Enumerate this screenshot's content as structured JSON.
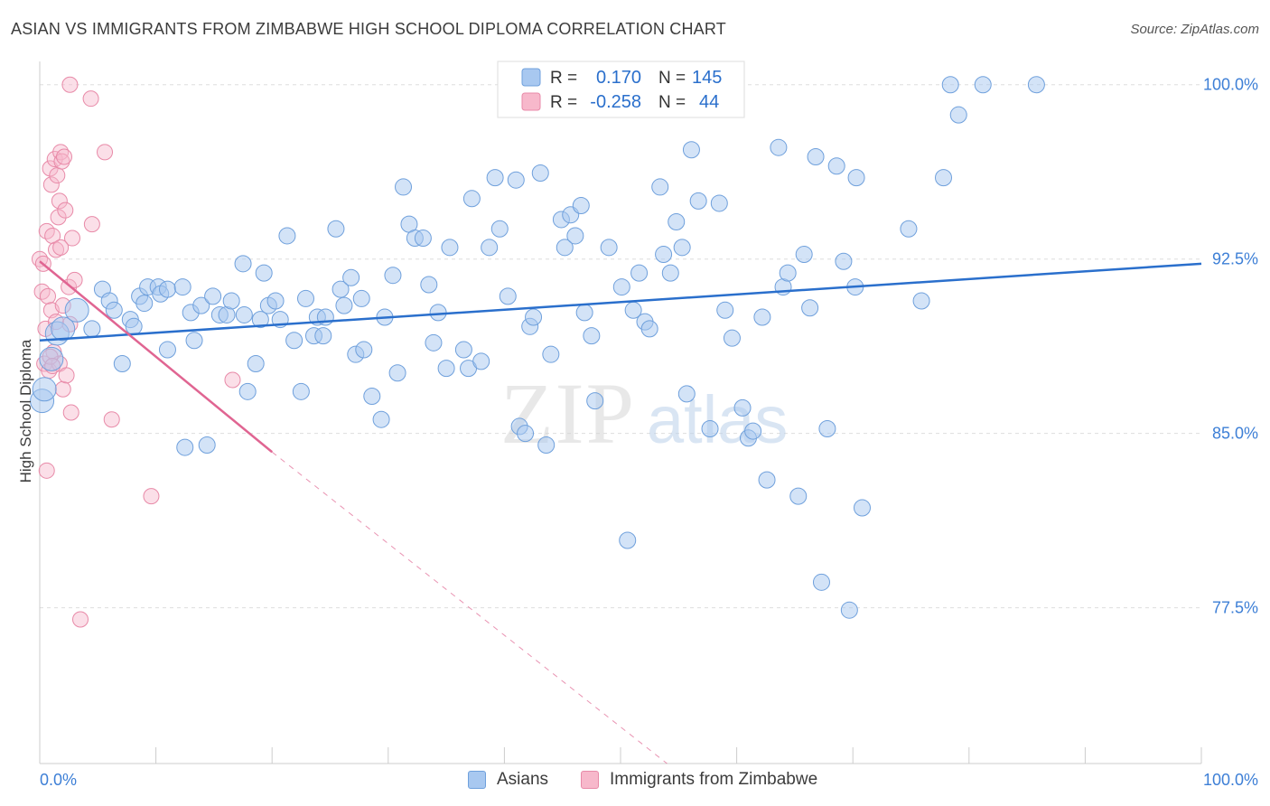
{
  "header": {
    "title": "ASIAN VS IMMIGRANTS FROM ZIMBABWE HIGH SCHOOL DIPLOMA CORRELATION CHART",
    "source": "Source: ZipAtlas.com"
  },
  "watermark": {
    "zip": "ZIP",
    "atlas": "atlas"
  },
  "legend_top": {
    "rows": [
      {
        "r_label": "R =",
        "r_value": "0.170",
        "n_label": "N =",
        "n_value": "145"
      },
      {
        "r_label": "R =",
        "r_value": "-0.258",
        "n_label": "N =",
        "n_value": "44"
      }
    ]
  },
  "colors": {
    "asian_fill": "#a8c8f0",
    "asian_stroke": "#6fa0dc",
    "asian_line": "#2a6fcc",
    "zimbabwe_fill": "#f7b8cb",
    "zimbabwe_stroke": "#e88aa8",
    "zimbabwe_line": "#e06592",
    "axis_label": "#3d7fd6",
    "grid": "#dddddd"
  },
  "chart_data": {
    "type": "scatter",
    "title": "ASIAN VS IMMIGRANTS FROM ZIMBABWE HIGH SCHOOL DIPLOMA CORRELATION CHART",
    "xlabel": "",
    "ylabel": "High School Diploma",
    "xlim": [
      0,
      100
    ],
    "ylim": [
      70.8,
      101.0
    ],
    "x_tick_labels": [
      "0.0%",
      "100.0%"
    ],
    "y_ticks": [
      77.5,
      85.0,
      92.5,
      100.0
    ],
    "y_tick_labels": [
      "77.5%",
      "85.0%",
      "92.5%",
      "100.0%"
    ],
    "grid": true,
    "legend_position": "bottom",
    "series": [
      {
        "name": "Asians",
        "r": 0.17,
        "n": 145,
        "trend": {
          "x": [
            0,
            100
          ],
          "y": [
            89.0,
            92.3
          ]
        },
        "points": [
          [
            0.2,
            86.4
          ],
          [
            0.4,
            86.9
          ],
          [
            1.0,
            88.2
          ],
          [
            1.5,
            89.3
          ],
          [
            2.0,
            89.5
          ],
          [
            3.2,
            90.3
          ],
          [
            4.5,
            89.5
          ],
          [
            5.4,
            91.2
          ],
          [
            6.0,
            90.7
          ],
          [
            6.4,
            90.3
          ],
          [
            7.1,
            88.0
          ],
          [
            7.8,
            89.9
          ],
          [
            8.1,
            89.6
          ],
          [
            8.6,
            90.9
          ],
          [
            9.0,
            90.6
          ],
          [
            9.3,
            91.3
          ],
          [
            10.2,
            91.3
          ],
          [
            10.4,
            91.0
          ],
          [
            11.0,
            91.2
          ],
          [
            11.0,
            88.6
          ],
          [
            12.3,
            91.3
          ],
          [
            12.5,
            84.4
          ],
          [
            13.0,
            90.2
          ],
          [
            13.3,
            89.0
          ],
          [
            13.9,
            90.5
          ],
          [
            14.4,
            84.5
          ],
          [
            14.9,
            90.9
          ],
          [
            15.5,
            90.1
          ],
          [
            16.1,
            90.1
          ],
          [
            16.5,
            90.7
          ],
          [
            17.5,
            92.3
          ],
          [
            17.6,
            90.1
          ],
          [
            17.9,
            86.8
          ],
          [
            18.6,
            88.0
          ],
          [
            19.0,
            89.9
          ],
          [
            19.3,
            91.9
          ],
          [
            19.7,
            90.5
          ],
          [
            20.3,
            90.7
          ],
          [
            20.7,
            89.9
          ],
          [
            21.3,
            93.5
          ],
          [
            21.9,
            89.0
          ],
          [
            22.5,
            86.8
          ],
          [
            22.9,
            90.8
          ],
          [
            23.6,
            89.2
          ],
          [
            23.9,
            90.0
          ],
          [
            24.4,
            89.2
          ],
          [
            24.6,
            90.0
          ],
          [
            25.5,
            93.8
          ],
          [
            25.9,
            91.2
          ],
          [
            26.2,
            90.5
          ],
          [
            26.8,
            91.7
          ],
          [
            27.2,
            88.4
          ],
          [
            27.7,
            90.8
          ],
          [
            27.9,
            88.6
          ],
          [
            28.6,
            86.6
          ],
          [
            29.4,
            85.6
          ],
          [
            29.7,
            90.0
          ],
          [
            30.4,
            91.8
          ],
          [
            30.8,
            87.6
          ],
          [
            31.3,
            95.6
          ],
          [
            31.8,
            94.0
          ],
          [
            32.3,
            93.4
          ],
          [
            33.0,
            93.4
          ],
          [
            33.5,
            91.4
          ],
          [
            33.9,
            88.9
          ],
          [
            34.3,
            90.2
          ],
          [
            35.0,
            87.8
          ],
          [
            35.3,
            93.0
          ],
          [
            36.5,
            88.6
          ],
          [
            36.9,
            87.8
          ],
          [
            37.2,
            95.1
          ],
          [
            38.0,
            88.1
          ],
          [
            38.7,
            93.0
          ],
          [
            39.2,
            96.0
          ],
          [
            39.6,
            93.8
          ],
          [
            40.3,
            90.9
          ],
          [
            41.0,
            95.9
          ],
          [
            41.3,
            85.3
          ],
          [
            41.8,
            85.0
          ],
          [
            42.2,
            89.6
          ],
          [
            42.5,
            90.0
          ],
          [
            43.1,
            96.2
          ],
          [
            43.6,
            84.5
          ],
          [
            44.0,
            88.4
          ],
          [
            44.9,
            94.2
          ],
          [
            45.2,
            93.0
          ],
          [
            45.7,
            94.4
          ],
          [
            46.1,
            93.5
          ],
          [
            46.6,
            94.8
          ],
          [
            46.9,
            90.2
          ],
          [
            47.5,
            89.2
          ],
          [
            47.8,
            86.4
          ],
          [
            49.0,
            93.0
          ],
          [
            50.1,
            91.3
          ],
          [
            50.6,
            80.4
          ],
          [
            51.1,
            90.3
          ],
          [
            51.6,
            91.9
          ],
          [
            52.1,
            89.8
          ],
          [
            52.5,
            89.5
          ],
          [
            53.4,
            95.6
          ],
          [
            53.7,
            92.7
          ],
          [
            54.3,
            91.9
          ],
          [
            54.8,
            94.1
          ],
          [
            55.3,
            93.0
          ],
          [
            55.7,
            86.7
          ],
          [
            56.1,
            97.2
          ],
          [
            56.7,
            95.0
          ],
          [
            57.7,
            85.2
          ],
          [
            58.5,
            94.9
          ],
          [
            59.0,
            90.3
          ],
          [
            59.6,
            89.1
          ],
          [
            60.5,
            86.1
          ],
          [
            61.0,
            84.8
          ],
          [
            61.4,
            85.1
          ],
          [
            62.2,
            90.0
          ],
          [
            62.6,
            83.0
          ],
          [
            63.6,
            97.3
          ],
          [
            64.0,
            91.3
          ],
          [
            64.4,
            91.9
          ],
          [
            65.3,
            82.3
          ],
          [
            65.8,
            92.7
          ],
          [
            66.3,
            90.4
          ],
          [
            66.8,
            96.9
          ],
          [
            67.3,
            78.6
          ],
          [
            67.8,
            85.2
          ],
          [
            68.6,
            96.5
          ],
          [
            69.2,
            92.4
          ],
          [
            69.7,
            77.4
          ],
          [
            70.2,
            91.3
          ],
          [
            70.3,
            96.0
          ],
          [
            70.8,
            81.8
          ],
          [
            74.8,
            93.8
          ],
          [
            75.9,
            90.7
          ],
          [
            77.8,
            96.0
          ],
          [
            78.4,
            100.0
          ],
          [
            79.1,
            98.7
          ],
          [
            81.2,
            100.0
          ],
          [
            85.8,
            100.0
          ]
        ]
      },
      {
        "name": "Immigrants from Zimbabwe",
        "r": -0.258,
        "n": 44,
        "trend": {
          "x": [
            0,
            20
          ],
          "y": [
            92.4,
            84.2
          ]
        },
        "trend_dashed": {
          "x": [
            20,
            54
          ],
          "y": [
            84.2,
            70.8
          ]
        },
        "points": [
          [
            0.0,
            92.5
          ],
          [
            0.2,
            91.1
          ],
          [
            0.3,
            92.3
          ],
          [
            0.4,
            88.0
          ],
          [
            0.5,
            89.5
          ],
          [
            0.6,
            93.7
          ],
          [
            0.7,
            90.9
          ],
          [
            0.8,
            87.7
          ],
          [
            0.9,
            96.4
          ],
          [
            1.0,
            95.7
          ],
          [
            1.0,
            90.3
          ],
          [
            1.1,
            93.5
          ],
          [
            1.2,
            88.5
          ],
          [
            1.3,
            96.8
          ],
          [
            1.4,
            92.9
          ],
          [
            1.4,
            89.8
          ],
          [
            1.5,
            96.1
          ],
          [
            1.6,
            94.3
          ],
          [
            1.7,
            95.0
          ],
          [
            1.7,
            88.0
          ],
          [
            1.8,
            97.1
          ],
          [
            1.9,
            96.7
          ],
          [
            2.0,
            90.5
          ],
          [
            2.0,
            86.9
          ],
          [
            2.1,
            96.9
          ],
          [
            2.2,
            94.6
          ],
          [
            2.3,
            87.5
          ],
          [
            2.5,
            91.3
          ],
          [
            2.6,
            89.7
          ],
          [
            2.8,
            93.4
          ],
          [
            3.0,
            91.6
          ],
          [
            1.8,
            93.0
          ],
          [
            0.6,
            83.4
          ],
          [
            0.9,
            88.3
          ],
          [
            1.1,
            87.9
          ],
          [
            2.7,
            85.9
          ],
          [
            2.6,
            100.0
          ],
          [
            3.5,
            77.0
          ],
          [
            4.4,
            99.4
          ],
          [
            4.5,
            94.0
          ],
          [
            5.6,
            97.1
          ],
          [
            6.2,
            85.6
          ],
          [
            9.6,
            82.3
          ],
          [
            16.6,
            87.3
          ]
        ]
      }
    ]
  },
  "legend_bottom": {
    "items": [
      {
        "label": "Asians"
      },
      {
        "label": "Immigrants from Zimbabwe"
      }
    ]
  }
}
